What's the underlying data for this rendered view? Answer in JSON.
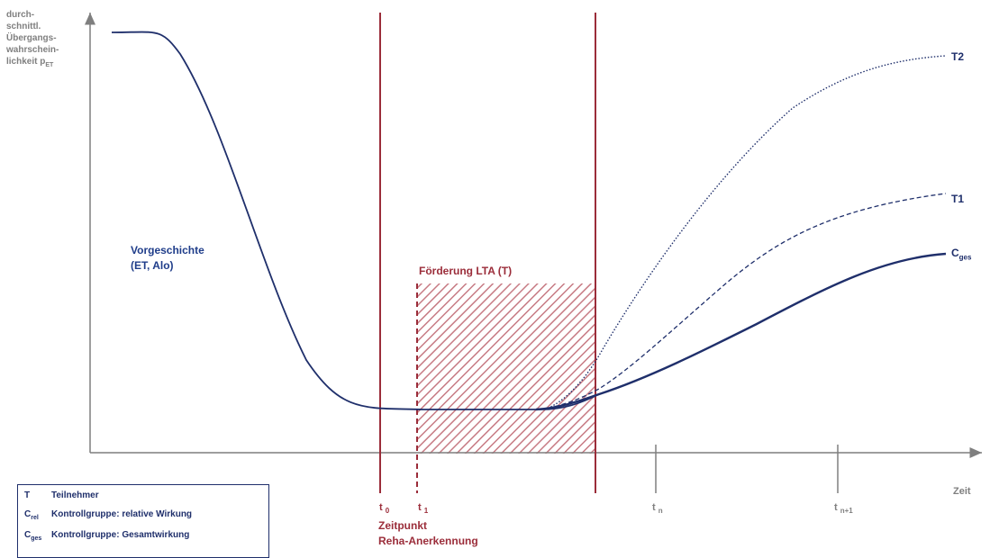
{
  "y_axis_title": [
    "durch-",
    "schnittl.",
    "Übergangs-",
    "wahrschein-",
    "lichkeit p"
  ],
  "y_axis_title_sub": "ET",
  "x_axis_label": "Zeit",
  "curves": {
    "t2": "T2",
    "t1": "T1",
    "cges_base": "C",
    "cges_sub": "ges"
  },
  "annotations": {
    "history_line1": "Vorgeschichte",
    "history_line2": "(ET, Alo)",
    "funding": "Förderung LTA (T)",
    "recognition_line1": "Zeitpunkt",
    "recognition_line2": "Reha-Anerkennung"
  },
  "ticks": {
    "t0": "t",
    "t0_sub": "0",
    "t1": "t",
    "t1_sub": "1",
    "tn": "t",
    "tn_sub": "n",
    "tn1": "t",
    "tn1_sub": "n+1"
  },
  "legend": [
    {
      "symbol": "T",
      "symbol_sub": "",
      "text": "Teilnehmer"
    },
    {
      "symbol": "C",
      "symbol_sub": "rel",
      "text": "Kontrollgruppe: relative Wirkung"
    },
    {
      "symbol": "C",
      "symbol_sub": "ges",
      "text": "Kontrollgruppe: Gesamtwirkung"
    }
  ],
  "colors": {
    "curve": "#1f2f6b",
    "marker": "#9b2d3a",
    "axis": "#7f7f7f"
  }
}
